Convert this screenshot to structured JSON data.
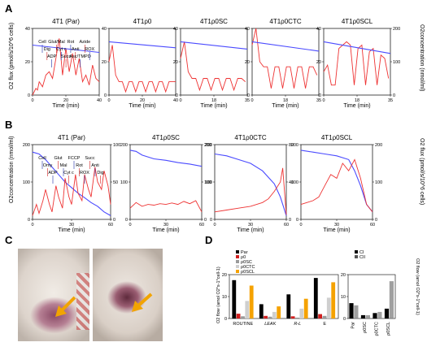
{
  "figure": {
    "panel_labels": {
      "A": "A",
      "B": "B",
      "C": "C",
      "D": "D"
    }
  },
  "colors": {
    "flux": "#ee3333",
    "oxygen": "#4a4aff",
    "par": "#000000",
    "rho": "#d11f1f",
    "rhosc": "#9a9a9a",
    "rhoctc": "#cfcfcf",
    "rhoscl": "#f5a200"
  },
  "panelA": {
    "ylabel_left": "O2 flux (pmol/s/10^6 cells)",
    "ylabel_right": "O2concentration (nmol/ml)",
    "xlabel": "Time (min)",
    "titles": [
      "4T1 (Par)",
      "4T1ρ0",
      "4T1ρ0SC",
      "4T1ρ0CTC",
      "4T1ρ0SCL"
    ]
  },
  "panelB": {
    "ylabel_left": "O2concentration (nmol/ml)",
    "ylabel_right": "O2 flux (pmol/s/10^6 cells)",
    "xlabel": "Time (min)",
    "titles": [
      "4T1 (Par)",
      "4T1ρ0SC",
      "4T1ρ0CTC",
      "4T1ρ0SCL"
    ]
  },
  "panelD": {
    "ylabel": "O2 flow (amol O2*s-1*cell-1)",
    "ylabel_right": "O2 flow (amol O2*s-1*cell-1)",
    "legend_left": [
      "Par",
      "ρ0",
      "ρ0SC",
      "ρ0CTC",
      "ρ0SCL"
    ],
    "legend_right": [
      "CI",
      "CII"
    ]
  },
  "chart_data": [
    {
      "panel": "A",
      "type": "line",
      "title": "4T1 (Par)",
      "xlabel": "Time (min)",
      "xlim": [
        0,
        40
      ],
      "ylim_left": [
        0,
        40
      ],
      "ylim_right": [
        0,
        200
      ],
      "grid": false,
      "annotations": [
        "Cell",
        "Dig",
        "ADP",
        "Glut/Mal",
        "Cyt c",
        "Succ",
        "Rot",
        "Anti",
        "Asc/TMPD",
        "Azide",
        "ROX"
      ],
      "series": [
        {
          "axis": "left",
          "x": [
            0,
            2,
            3,
            4,
            6,
            8,
            10,
            12,
            14,
            16,
            18,
            20,
            22,
            24,
            26,
            28,
            30,
            32,
            34,
            36,
            38,
            40
          ],
          "y": [
            0,
            4,
            3,
            8,
            5,
            12,
            14,
            10,
            22,
            34,
            12,
            28,
            14,
            25,
            12,
            22,
            8,
            12,
            6,
            18,
            10,
            8
          ]
        },
        {
          "axis": "right",
          "x": [
            0,
            40
          ],
          "y": [
            150,
            128
          ]
        }
      ]
    },
    {
      "panel": "A",
      "type": "line",
      "title": "4T1ρ0",
      "xlabel": "Time (min)",
      "xlim": [
        0,
        40
      ],
      "ylim_left": [
        0,
        40
      ],
      "ylim_right": [
        0,
        200
      ],
      "grid": false,
      "series": [
        {
          "axis": "left",
          "x": [
            0,
            2,
            4,
            6,
            8,
            10,
            12,
            14,
            16,
            18,
            20,
            22,
            24,
            26,
            28,
            30,
            32,
            34,
            36,
            38,
            40
          ],
          "y": [
            20,
            30,
            12,
            8,
            8,
            2,
            8,
            8,
            2,
            8,
            8,
            2,
            8,
            8,
            2,
            8,
            8,
            2,
            8,
            8,
            8
          ]
        },
        {
          "axis": "right",
          "x": [
            0,
            40
          ],
          "y": [
            160,
            142
          ]
        }
      ]
    },
    {
      "panel": "A",
      "type": "line",
      "title": "4T1ρ0SC",
      "xlabel": "Time (min)",
      "xlim": [
        0,
        35
      ],
      "ylim_left": [
        0,
        40
      ],
      "ylim_right": [
        0,
        200
      ],
      "grid": false,
      "series": [
        {
          "axis": "left",
          "x": [
            0,
            2,
            4,
            6,
            8,
            10,
            12,
            14,
            16,
            18,
            20,
            22,
            24,
            26,
            28,
            30,
            32,
            34
          ],
          "y": [
            22,
            32,
            14,
            10,
            10,
            3,
            10,
            10,
            3,
            10,
            10,
            3,
            10,
            10,
            3,
            10,
            10,
            8
          ]
        },
        {
          "axis": "right",
          "x": [
            0,
            35
          ],
          "y": [
            160,
            138
          ]
        }
      ]
    },
    {
      "panel": "A",
      "type": "line",
      "title": "4T1ρ0CTC",
      "xlabel": "Time (min)",
      "xlim": [
        0,
        35
      ],
      "ylim_left": [
        0,
        40
      ],
      "ylim_right": [
        0,
        200
      ],
      "grid": false,
      "series": [
        {
          "axis": "left",
          "x": [
            0,
            2,
            4,
            6,
            8,
            10,
            12,
            14,
            16,
            18,
            20,
            22,
            24,
            26,
            28,
            30,
            32,
            34
          ],
          "y": [
            30,
            40,
            20,
            17,
            17,
            4,
            17,
            17,
            4,
            17,
            17,
            4,
            17,
            17,
            4,
            17,
            17,
            12
          ]
        },
        {
          "axis": "right",
          "x": [
            0,
            35
          ],
          "y": [
            160,
            132
          ]
        }
      ]
    },
    {
      "panel": "A",
      "type": "line",
      "title": "4T1ρ0SCL",
      "xlabel": "Time (min)",
      "xlim": [
        0,
        35
      ],
      "ylim_left": [
        0,
        40
      ],
      "ylim_right": [
        0,
        200
      ],
      "grid": false,
      "series": [
        {
          "axis": "left",
          "x": [
            0,
            2,
            4,
            6,
            8,
            10,
            12,
            14,
            16,
            18,
            20,
            22,
            24,
            26,
            28,
            30,
            32,
            34
          ],
          "y": [
            14,
            18,
            6,
            6,
            28,
            30,
            32,
            30,
            6,
            28,
            30,
            6,
            26,
            28,
            6,
            24,
            22,
            10
          ]
        },
        {
          "axis": "right",
          "x": [
            0,
            35
          ],
          "y": [
            160,
            125
          ]
        }
      ]
    },
    {
      "panel": "B",
      "type": "line",
      "title": "4T1 (Par)",
      "xlabel": "Time (min)",
      "xlim": [
        0,
        60
      ],
      "ylim_left": [
        0,
        200
      ],
      "ylim_right": [
        0,
        100
      ],
      "grid": false,
      "annotations": [
        "Cell",
        "Omy",
        "ADP",
        "Glut",
        "Mal",
        "Cyt c",
        "FCCP",
        "Rot",
        "ROX",
        "Succ",
        "Anti",
        "Dig"
      ],
      "series": [
        {
          "axis": "left",
          "x": [
            0,
            5,
            10,
            15,
            20,
            25,
            30,
            35,
            40,
            45,
            50,
            55,
            60
          ],
          "y": [
            180,
            175,
            160,
            140,
            120,
            100,
            85,
            70,
            58,
            45,
            35,
            20,
            10
          ]
        },
        {
          "axis": "right",
          "x": [
            0,
            3,
            5,
            8,
            10,
            13,
            15,
            18,
            20,
            23,
            25,
            28,
            30,
            33,
            35,
            38,
            40,
            43,
            45,
            48,
            50,
            53,
            55,
            58,
            60
          ],
          "y": [
            5,
            20,
            8,
            25,
            40,
            20,
            10,
            45,
            30,
            15,
            55,
            30,
            20,
            60,
            35,
            25,
            60,
            40,
            30,
            70,
            50,
            40,
            65,
            45,
            20
          ]
        }
      ]
    },
    {
      "panel": "B",
      "type": "line",
      "title": "4T1ρ0SC",
      "xlabel": "Time (min)",
      "xlim": [
        0,
        60
      ],
      "ylim_left": [
        0,
        200
      ],
      "ylim_right": [
        0,
        200
      ],
      "grid": false,
      "series": [
        {
          "axis": "left",
          "x": [
            0,
            5,
            10,
            20,
            30,
            40,
            50,
            60
          ],
          "y": [
            185,
            182,
            172,
            162,
            158,
            152,
            148,
            142
          ]
        },
        {
          "axis": "right",
          "x": [
            0,
            5,
            10,
            15,
            20,
            25,
            30,
            35,
            40,
            45,
            50,
            55,
            60
          ],
          "y": [
            30,
            45,
            35,
            40,
            38,
            42,
            40,
            44,
            40,
            48,
            42,
            50,
            20
          ]
        }
      ]
    },
    {
      "panel": "B",
      "type": "line",
      "title": "4T1ρ0CTC",
      "xlabel": "Time (min)",
      "xlim": [
        0,
        60
      ],
      "ylim_left": [
        0,
        200
      ],
      "ylim_right": [
        0,
        80
      ],
      "grid": false,
      "series": [
        {
          "axis": "left",
          "x": [
            0,
            10,
            20,
            30,
            40,
            50,
            55,
            58,
            60
          ],
          "y": [
            175,
            170,
            160,
            150,
            130,
            95,
            60,
            30,
            10
          ]
        },
        {
          "axis": "right",
          "x": [
            0,
            10,
            20,
            30,
            40,
            45,
            50,
            55,
            57,
            60
          ],
          "y": [
            8,
            10,
            12,
            14,
            18,
            22,
            30,
            40,
            55,
            5
          ]
        }
      ]
    },
    {
      "panel": "B",
      "type": "line",
      "title": "4T1ρ0SCL",
      "xlabel": "Time (min)",
      "xlim": [
        0,
        60
      ],
      "ylim_left": [
        0,
        200
      ],
      "ylim_right": [
        0,
        200
      ],
      "grid": false,
      "series": [
        {
          "axis": "left",
          "x": [
            0,
            10,
            20,
            30,
            40,
            45,
            50,
            55,
            60
          ],
          "y": [
            185,
            180,
            175,
            170,
            160,
            130,
            90,
            40,
            20
          ]
        },
        {
          "axis": "right",
          "x": [
            0,
            5,
            10,
            15,
            20,
            25,
            30,
            35,
            40,
            45,
            50,
            55,
            60
          ],
          "y": [
            40,
            45,
            50,
            60,
            90,
            120,
            110,
            150,
            130,
            160,
            110,
            40,
            20
          ]
        }
      ]
    },
    {
      "panel": "D",
      "type": "bar",
      "ylim": [
        0,
        20
      ],
      "categories": [
        "ROUTINE",
        "LEAK",
        "R-L",
        "E"
      ],
      "series": [
        {
          "name": "Par",
          "values": [
            17.5,
            6.5,
            11,
            18.5
          ]
        },
        {
          "name": "ρ0",
          "values": [
            2.2,
            1.2,
            1.0,
            2.0
          ]
        },
        {
          "name": "ρ0SC",
          "values": [
            1.0,
            0.8,
            0.4,
            1.2
          ]
        },
        {
          "name": "ρ0CTC",
          "values": [
            8,
            3,
            4.5,
            9.5
          ]
        },
        {
          "name": "ρ0SCL",
          "values": [
            15,
            5.5,
            9,
            16.5
          ]
        }
      ]
    },
    {
      "panel": "D",
      "type": "bar",
      "ylim": [
        0,
        20
      ],
      "categories": [
        "Par",
        "ρ0SC",
        "ρ0CTC",
        "ρ0SCL"
      ],
      "series": [
        {
          "name": "CI",
          "values": [
            7,
            1.5,
            2.5,
            4.5
          ]
        },
        {
          "name": "CII",
          "values": [
            6,
            1.5,
            3,
            17
          ]
        }
      ]
    }
  ]
}
